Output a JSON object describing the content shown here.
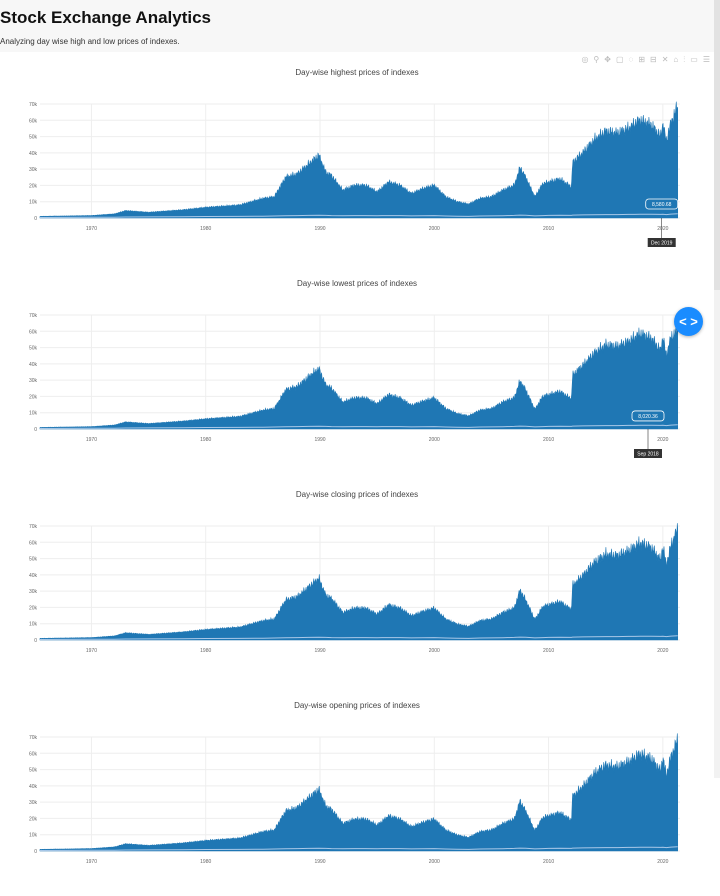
{
  "header": {
    "title": "Stock Exchange Analytics",
    "subtitle": "Analyzing day wise high and low prices of indexes."
  },
  "modebar": {
    "icons": [
      "camera-icon",
      "zoom-icon",
      "pan-icon",
      "box-select-icon",
      "lasso-icon",
      "zoom-in-icon",
      "zoom-out-icon",
      "autoscale-icon",
      "reset-axes-icon",
      "spike-lines-icon",
      "hover-closest-icon",
      "hover-compare-icon"
    ]
  },
  "floating_button": {
    "icon": "code-brackets-icon",
    "label": "< >"
  },
  "colors": {
    "area": "#1f77b4",
    "baseline": "#a9c8e8",
    "fab": "#1a8cff"
  },
  "chart_data": [
    {
      "type": "area",
      "title": "Day-wise highest prices of indexes",
      "x": [
        1965.5,
        1970,
        1972,
        1973,
        1975,
        1978,
        1980,
        1983,
        1985,
        1986,
        1987,
        1988,
        1989,
        1989.9,
        1990.5,
        1991,
        1992,
        1993,
        1994,
        1995,
        1996,
        1997,
        1998,
        1999,
        2000,
        2001,
        2002,
        2003,
        2004,
        2005,
        2006,
        2007,
        2007.5,
        2008,
        2008.8,
        2009.5,
        2010,
        2011,
        2012,
        2012.1,
        2013,
        2014,
        2015,
        2016,
        2017,
        2018,
        2019,
        2019.8,
        2020,
        2020.3,
        2020.7,
        2021.3
      ],
      "series": [
        {
          "values": [
            1000,
            1500,
            2500,
            4500,
            3500,
            5000,
            6500,
            8000,
            12000,
            13000,
            25000,
            27000,
            33000,
            38500,
            28000,
            26000,
            17000,
            20000,
            20000,
            16000,
            22000,
            20000,
            15000,
            18000,
            20000,
            13000,
            10000,
            8500,
            12000,
            13000,
            17000,
            20000,
            31000,
            25000,
            13000,
            21000,
            22000,
            24000,
            19000,
            34000,
            40000,
            48000,
            53000,
            52000,
            55000,
            60000,
            57000,
            50000,
            58000,
            47000,
            58000,
            69000
          ]
        },
        {
          "values": [
            300,
            400,
            500,
            600,
            700,
            800,
            900,
            1000,
            1100,
            1200,
            1400,
            1500,
            1600,
            1700,
            1600,
            1500,
            1400,
            1500,
            1500,
            1400,
            1500,
            1500,
            1300,
            1400,
            1500,
            1200,
            1100,
            1000,
            1200,
            1300,
            1400,
            1600,
            1800,
            1700,
            1300,
            1500,
            1600,
            1700,
            1600,
            1800,
            1900,
            2000,
            2100,
            2100,
            2200,
            2300,
            2300,
            2200,
            2300,
            2100,
            2400,
            2600
          ]
        }
      ],
      "xticks": [
        "1970",
        "1980",
        "1990",
        "2000",
        "2010",
        "2020"
      ],
      "yticks": [
        "0",
        "10k",
        "20k",
        "30k",
        "40k",
        "50k",
        "60k",
        "70k"
      ],
      "xlim": [
        1965.5,
        2021.5
      ],
      "ylim": [
        0,
        70000
      ],
      "grid": true,
      "hover": {
        "value": "8,580.68",
        "date": "Dec 2019",
        "x": 2019.9,
        "y": 8580.68
      }
    },
    {
      "type": "area",
      "title": "Day-wise lowest prices of indexes",
      "x": [
        1965.5,
        1970,
        1972,
        1973,
        1975,
        1978,
        1980,
        1983,
        1985,
        1986,
        1987,
        1988,
        1989,
        1989.9,
        1990.5,
        1991,
        1992,
        1993,
        1994,
        1995,
        1996,
        1997,
        1998,
        1999,
        2000,
        2001,
        2002,
        2003,
        2004,
        2005,
        2006,
        2007,
        2007.5,
        2008,
        2008.8,
        2009.5,
        2010,
        2011,
        2012,
        2012.1,
        2013,
        2014,
        2015,
        2016,
        2017,
        2018,
        2019,
        2019.8,
        2020,
        2020.3,
        2020.7,
        2021.3
      ],
      "series": [
        {
          "values": [
            950,
            1450,
            2400,
            4300,
            3300,
            4800,
            6200,
            7700,
            11500,
            12500,
            24000,
            26000,
            32000,
            37000,
            27000,
            25000,
            16500,
            19000,
            19000,
            15500,
            21000,
            19000,
            14500,
            17000,
            19000,
            12500,
            9500,
            8000,
            11500,
            12500,
            16500,
            19000,
            29500,
            24000,
            12000,
            20000,
            21000,
            23000,
            18500,
            33000,
            39000,
            46500,
            51500,
            50500,
            53500,
            58500,
            55500,
            48000,
            56500,
            45000,
            56000,
            60000
          ]
        },
        {
          "values": [
            300,
            400,
            500,
            600,
            700,
            800,
            900,
            1000,
            1100,
            1200,
            1400,
            1500,
            1600,
            1700,
            1600,
            1500,
            1400,
            1500,
            1500,
            1400,
            1500,
            1500,
            1300,
            1400,
            1500,
            1200,
            1100,
            1000,
            1200,
            1300,
            1400,
            1600,
            1800,
            1700,
            1300,
            1500,
            1600,
            1700,
            1600,
            1800,
            1900,
            2000,
            2100,
            2100,
            2200,
            2300,
            2300,
            2200,
            2300,
            2100,
            2400,
            2600
          ]
        }
      ],
      "xticks": [
        "1970",
        "1980",
        "1990",
        "2000",
        "2010",
        "2020"
      ],
      "yticks": [
        "0",
        "10k",
        "20k",
        "30k",
        "40k",
        "50k",
        "60k",
        "70k"
      ],
      "xlim": [
        1965.5,
        2021.5
      ],
      "ylim": [
        0,
        70000
      ],
      "grid": true,
      "hover": {
        "value": "8,020.36",
        "date": "Sep 2018",
        "x": 2018.7,
        "y": 8020.36
      }
    },
    {
      "type": "area",
      "title": "Day-wise closing prices of indexes",
      "x": [
        1965.5,
        1970,
        1972,
        1973,
        1975,
        1978,
        1980,
        1983,
        1985,
        1986,
        1987,
        1988,
        1989,
        1989.9,
        1990.5,
        1991,
        1992,
        1993,
        1994,
        1995,
        1996,
        1997,
        1998,
        1999,
        2000,
        2001,
        2002,
        2003,
        2004,
        2005,
        2006,
        2007,
        2007.5,
        2008,
        2008.8,
        2009.5,
        2010,
        2011,
        2012,
        2012.1,
        2013,
        2014,
        2015,
        2016,
        2017,
        2018,
        2019,
        2019.8,
        2020,
        2020.3,
        2020.7,
        2021.3
      ],
      "series": [
        {
          "values": [
            980,
            1480,
            2450,
            4400,
            3400,
            4900,
            6400,
            7900,
            11800,
            12800,
            24500,
            26500,
            32500,
            37800,
            27500,
            25500,
            16800,
            19500,
            19500,
            15800,
            21500,
            19500,
            14800,
            17500,
            19500,
            12800,
            9800,
            8300,
            11800,
            12800,
            16800,
            19500,
            30500,
            24500,
            12500,
            20500,
            21500,
            23500,
            18800,
            33500,
            39500,
            47500,
            52500,
            51500,
            54500,
            59500,
            56500,
            49000,
            57500,
            46000,
            57500,
            68500
          ]
        },
        {
          "values": [
            300,
            400,
            500,
            600,
            700,
            800,
            900,
            1000,
            1100,
            1200,
            1400,
            1500,
            1600,
            1700,
            1600,
            1500,
            1400,
            1500,
            1500,
            1400,
            1500,
            1500,
            1300,
            1400,
            1500,
            1200,
            1100,
            1000,
            1200,
            1300,
            1400,
            1600,
            1800,
            1700,
            1300,
            1500,
            1600,
            1700,
            1600,
            1800,
            1900,
            2000,
            2100,
            2100,
            2200,
            2300,
            2300,
            2200,
            2300,
            2100,
            2400,
            2600
          ]
        }
      ],
      "xticks": [
        "1970",
        "1980",
        "1990",
        "2000",
        "2010",
        "2020"
      ],
      "yticks": [
        "0",
        "10k",
        "20k",
        "30k",
        "40k",
        "50k",
        "60k",
        "70k"
      ],
      "xlim": [
        1965.5,
        2021.5
      ],
      "ylim": [
        0,
        70000
      ],
      "grid": true
    },
    {
      "type": "area",
      "title": "Day-wise opening prices of indexes",
      "x": [
        1965.5,
        1970,
        1972,
        1973,
        1975,
        1978,
        1980,
        1983,
        1985,
        1986,
        1987,
        1988,
        1989,
        1989.9,
        1990.5,
        1991,
        1992,
        1993,
        1994,
        1995,
        1996,
        1997,
        1998,
        1999,
        2000,
        2001,
        2002,
        2003,
        2004,
        2005,
        2006,
        2007,
        2007.5,
        2008,
        2008.8,
        2009.5,
        2010,
        2011,
        2012,
        2012.1,
        2013,
        2014,
        2015,
        2016,
        2017,
        2018,
        2019,
        2019.8,
        2020,
        2020.3,
        2020.7,
        2021.3
      ],
      "series": [
        {
          "values": [
            980,
            1480,
            2450,
            4400,
            3400,
            4900,
            6400,
            7900,
            11800,
            12800,
            24500,
            26500,
            32500,
            37800,
            27500,
            25500,
            16800,
            19500,
            19500,
            15800,
            21500,
            19500,
            14800,
            17500,
            19500,
            12800,
            9800,
            8300,
            11800,
            12800,
            16800,
            19500,
            30500,
            24500,
            12500,
            20500,
            21500,
            23500,
            18800,
            33500,
            39500,
            47500,
            52500,
            51500,
            54500,
            59500,
            56500,
            49000,
            57500,
            46000,
            57500,
            68500
          ]
        },
        {
          "values": [
            300,
            400,
            500,
            600,
            700,
            800,
            900,
            1000,
            1100,
            1200,
            1400,
            1500,
            1600,
            1700,
            1600,
            1500,
            1400,
            1500,
            1500,
            1400,
            1500,
            1500,
            1300,
            1400,
            1500,
            1200,
            1100,
            1000,
            1200,
            1300,
            1400,
            1600,
            1800,
            1700,
            1300,
            1500,
            1600,
            1700,
            1600,
            1800,
            1900,
            2000,
            2100,
            2100,
            2200,
            2300,
            2300,
            2200,
            2300,
            2100,
            2400,
            2600
          ]
        }
      ],
      "xticks": [
        "1970",
        "1980",
        "1990",
        "2000",
        "2010",
        "2020"
      ],
      "yticks": [
        "0",
        "10k",
        "20k",
        "30k",
        "40k",
        "50k",
        "60k",
        "70k"
      ],
      "xlim": [
        1965.5,
        2021.5
      ],
      "ylim": [
        0,
        70000
      ],
      "grid": true
    }
  ]
}
